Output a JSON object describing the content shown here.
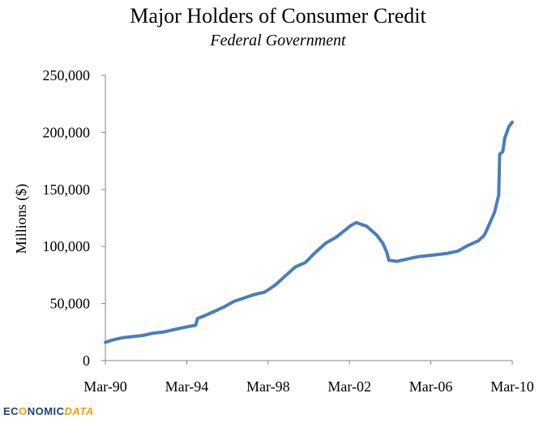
{
  "chart_data": {
    "type": "line",
    "title": "Major Holders of Consumer Credit",
    "subtitle": "Federal Government",
    "xlabel": "",
    "ylabel": "Millions ($)",
    "ylim": [
      0,
      250000
    ],
    "yticks": [
      0,
      50000,
      100000,
      150000,
      200000,
      250000
    ],
    "ytick_labels": [
      "0",
      "50,000",
      "100,000",
      "150,000",
      "200,000",
      "250,000"
    ],
    "xlim": [
      1990.167,
      2010.167
    ],
    "xticks": [
      1990.167,
      1994.167,
      1998.167,
      2002.167,
      2006.167,
      2010.167
    ],
    "xtick_labels": [
      "Mar-90",
      "Mar-94",
      "Mar-98",
      "Mar-02",
      "Mar-06",
      "Mar-10"
    ],
    "grid": false,
    "legend": "none",
    "color": "#4a7ebb",
    "series": [
      {
        "name": "Federal Government",
        "x": [
          1990.167,
          1990.5,
          1991.0,
          1991.5,
          1992.0,
          1992.5,
          1993.0,
          1993.5,
          1994.0,
          1994.6,
          1994.7,
          1995.0,
          1995.5,
          1996.0,
          1996.5,
          1997.0,
          1997.5,
          1998.0,
          1998.5,
          1999.0,
          1999.5,
          2000.0,
          2000.5,
          2001.0,
          2001.5,
          2002.0,
          2002.2,
          2002.5,
          2002.8,
          2003.0,
          2003.5,
          2003.8,
          2004.0,
          2004.1,
          2004.5,
          2005.0,
          2005.5,
          2006.0,
          2006.5,
          2007.0,
          2007.5,
          2008.0,
          2008.5,
          2008.8,
          2009.0,
          2009.3,
          2009.5,
          2009.55,
          2009.7,
          2009.8,
          2010.0,
          2010.167
        ],
        "values": [
          16000,
          18000,
          20000,
          21000,
          22000,
          24000,
          25000,
          27000,
          29000,
          31000,
          37000,
          39000,
          43000,
          47000,
          52000,
          55000,
          58000,
          60000,
          66000,
          74000,
          82000,
          86000,
          95000,
          103000,
          108000,
          115000,
          118000,
          121000,
          119000,
          118000,
          110000,
          103000,
          95000,
          88000,
          87000,
          89000,
          91000,
          92000,
          93000,
          94000,
          96000,
          101000,
          105000,
          110000,
          118000,
          130000,
          145000,
          181000,
          183000,
          195000,
          205000,
          209000
        ]
      }
    ]
  },
  "brand": {
    "part1": "EC",
    "part2": "O",
    "part3": "NOMIC",
    "part4": "DATA"
  }
}
